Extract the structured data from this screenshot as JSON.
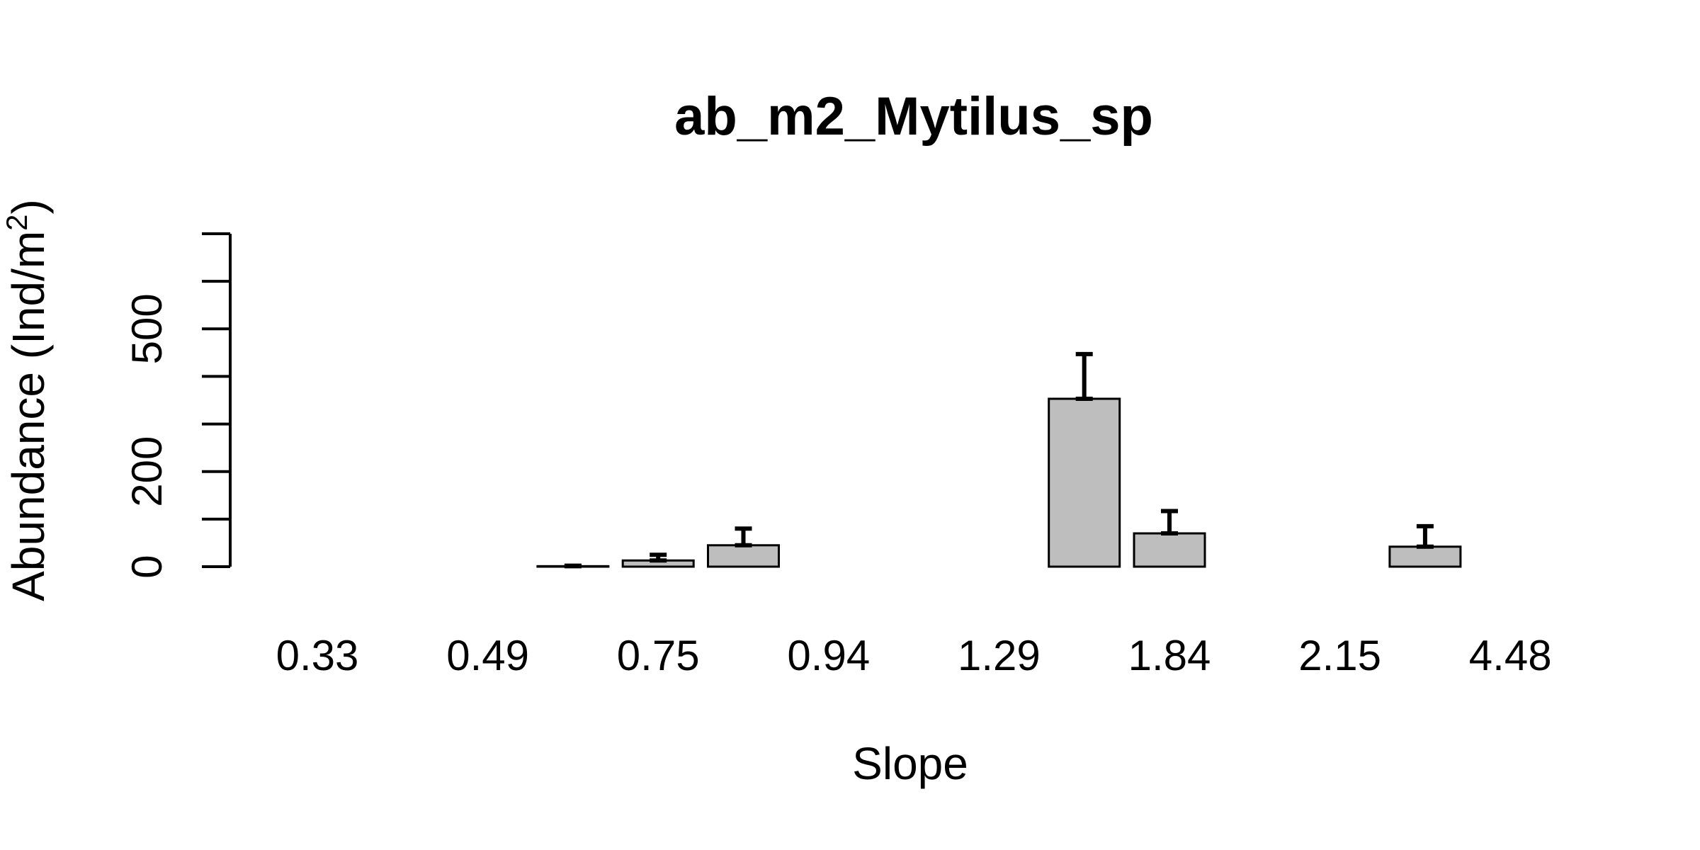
{
  "chart_data": {
    "type": "bar",
    "title": "ab_m2_Mytilus_sp",
    "xlabel": "Slope",
    "ylabel_prefix": "Abundance (Ind/m",
    "ylabel_sup": "2",
    "ylabel_suffix": ")",
    "ylim": [
      0,
      700
    ],
    "yticks": [
      0,
      100,
      200,
      300,
      400,
      500,
      600,
      700
    ],
    "ytick_labels": [
      "0",
      "",
      "200",
      "",
      "",
      "500",
      "",
      ""
    ],
    "categories": [
      "0.33",
      "",
      "0.49",
      "",
      "0.75",
      "",
      "0.94",
      "",
      "1.29",
      "",
      "1.84",
      "",
      "2.15",
      "",
      "4.48"
    ],
    "values": [
      0,
      0,
      0,
      1,
      13,
      45,
      0,
      0,
      0,
      353,
      70,
      0,
      0,
      42,
      0
    ],
    "error_upper": [
      0,
      0,
      0,
      2,
      25,
      80,
      0,
      0,
      0,
      447,
      117,
      0,
      0,
      85,
      0
    ],
    "bar_color": "#bebebe",
    "grid": false,
    "legend": "none"
  }
}
